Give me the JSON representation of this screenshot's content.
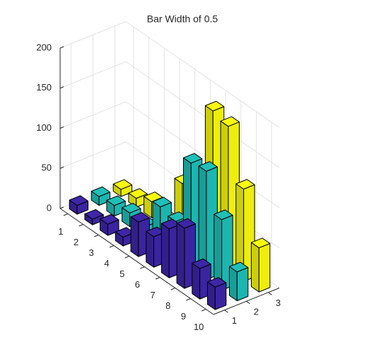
{
  "chart_data": {
    "type": "bar3",
    "title": "Bar Width of 0.5",
    "rows": [
      1,
      2,
      3,
      4,
      5,
      6,
      7,
      8,
      9,
      10
    ],
    "columns": [
      1,
      2,
      3
    ],
    "zlim": [
      0,
      200
    ],
    "zticks": [
      0,
      50,
      100,
      150,
      200
    ],
    "bar_width": 0.5,
    "grid": true,
    "series": [
      {
        "color": "#3e26a8",
        "values": [
          11,
          7,
          14,
          11,
          43,
          38,
          61,
          75,
          38,
          28
        ]
      },
      {
        "color": "#1fbfb8",
        "values": [
          11,
          13,
          17,
          13,
          51,
          46,
          132,
          135,
          88,
          36
        ]
      },
      {
        "color": "#f9fb0e",
        "values": [
          9,
          11,
          20,
          9,
          69,
          76,
          186,
          180,
          115,
          55
        ]
      }
    ]
  }
}
